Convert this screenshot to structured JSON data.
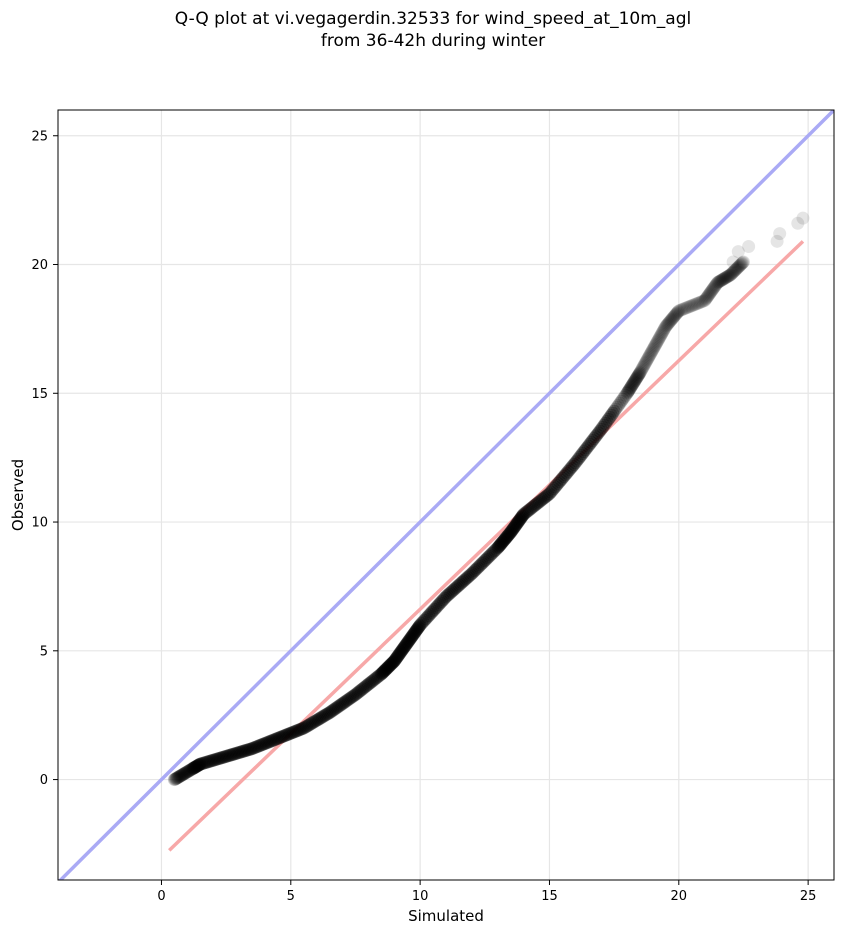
{
  "title": {
    "line1": "Q-Q plot at vi.vegagerdin.32533 for wind_speed_at_10m_agl",
    "line2": "from 36-42h during winter"
  },
  "chart_data": {
    "type": "scatter",
    "title": "Q-Q plot at vi.vegagerdin.32533 for wind_speed_at_10m_agl from 36-42h during winter",
    "xlabel": "Simulated",
    "ylabel": "Observed",
    "xlim": [
      -4,
      26
    ],
    "ylim": [
      -3.9,
      26
    ],
    "xticks": [
      0,
      5,
      10,
      15,
      20,
      25
    ],
    "yticks": [
      0,
      5,
      10,
      15,
      20,
      25
    ],
    "grid": true,
    "colors": {
      "points": "#000000",
      "identity_line": "#aaaaf5",
      "fit_line": "#f7a8a8"
    },
    "quantile_curve": [
      [
        0.5,
        0.0
      ],
      [
        1.0,
        0.3
      ],
      [
        1.5,
        0.6
      ],
      [
        2.5,
        0.9
      ],
      [
        3.5,
        1.2
      ],
      [
        4.5,
        1.6
      ],
      [
        5.5,
        2.0
      ],
      [
        6.5,
        2.6
      ],
      [
        7.5,
        3.3
      ],
      [
        8.5,
        4.1
      ],
      [
        9.0,
        4.6
      ],
      [
        9.5,
        5.3
      ],
      [
        10.0,
        6.0
      ],
      [
        11.0,
        7.1
      ],
      [
        12.0,
        8.0
      ],
      [
        13.0,
        9.0
      ],
      [
        13.5,
        9.6
      ],
      [
        14.0,
        10.3
      ],
      [
        15.0,
        11.1
      ],
      [
        16.0,
        12.3
      ],
      [
        17.0,
        13.6
      ],
      [
        18.0,
        15.0
      ],
      [
        18.5,
        15.8
      ],
      [
        19.0,
        16.7
      ],
      [
        19.5,
        17.6
      ],
      [
        20.0,
        18.2
      ],
      [
        21.0,
        18.6
      ],
      [
        21.5,
        19.3
      ],
      [
        22.0,
        19.6
      ],
      [
        22.5,
        20.1
      ]
    ],
    "tail_points": [
      [
        22.1,
        20.1
      ],
      [
        22.3,
        20.5
      ],
      [
        22.7,
        20.7
      ],
      [
        23.8,
        20.9
      ],
      [
        23.9,
        21.2
      ],
      [
        24.6,
        21.6
      ],
      [
        24.8,
        21.8
      ]
    ],
    "identity_line": {
      "name": "",
      "from": [
        -4,
        -4
      ],
      "to": [
        26,
        26
      ]
    },
    "fit_line": {
      "name": "",
      "from": [
        0.3,
        -2.75
      ],
      "to": [
        24.8,
        20.9
      ]
    }
  }
}
